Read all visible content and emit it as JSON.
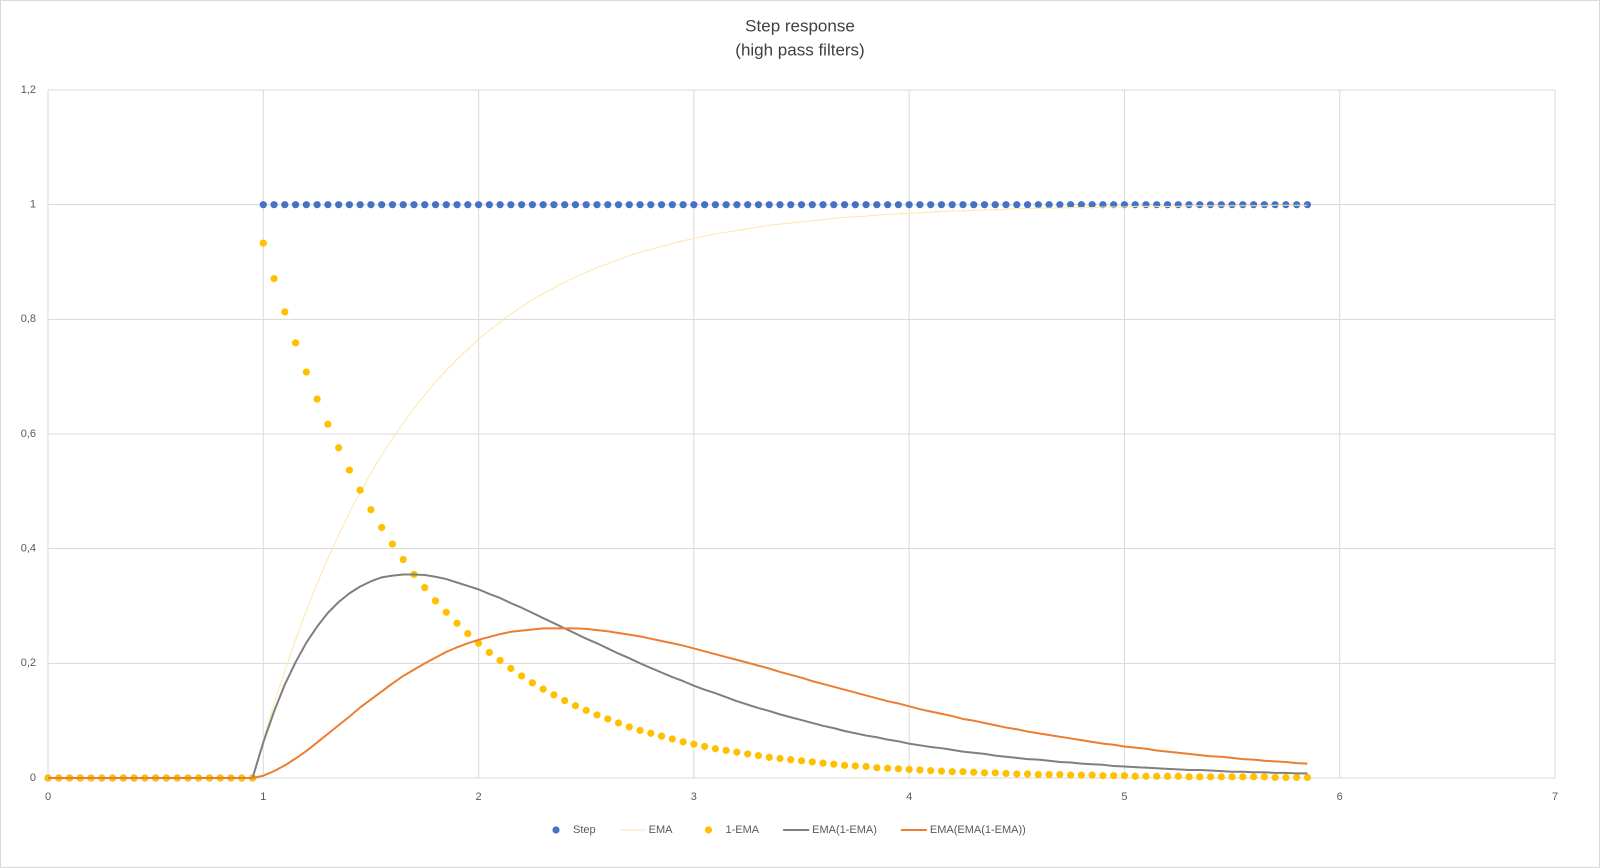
{
  "chart_data": {
    "type": "line",
    "title": "Step response",
    "subtitle": "(high pass filters)",
    "x": [
      0,
      0.05,
      0.1,
      0.15,
      0.2,
      0.25,
      0.3,
      0.35,
      0.4,
      0.45,
      0.5,
      0.55,
      0.6,
      0.65,
      0.7,
      0.75,
      0.8,
      0.85,
      0.9,
      0.95,
      1,
      1.05,
      1.1,
      1.15,
      1.2,
      1.25,
      1.3,
      1.35,
      1.4,
      1.45,
      1.5,
      1.55,
      1.6,
      1.65,
      1.7,
      1.75,
      1.8,
      1.85,
      1.9,
      1.95,
      2,
      2.05,
      2.1,
      2.15,
      2.2,
      2.25,
      2.3,
      2.35,
      2.4,
      2.45,
      2.5,
      2.55,
      2.6,
      2.65,
      2.7,
      2.75,
      2.8,
      2.85,
      2.9,
      2.95,
      3,
      3.05,
      3.1,
      3.15,
      3.2,
      3.25,
      3.3,
      3.35,
      3.4,
      3.45,
      3.5,
      3.55,
      3.6,
      3.65,
      3.7,
      3.75,
      3.8,
      3.85,
      3.9,
      3.95,
      4,
      4.05,
      4.1,
      4.15,
      4.2,
      4.25,
      4.3,
      4.35,
      4.4,
      4.45,
      4.5,
      4.55,
      4.6,
      4.65,
      4.7,
      4.75,
      4.8,
      4.85,
      4.9,
      4.95,
      5,
      5.05,
      5.1,
      5.15,
      5.2,
      5.25,
      5.3,
      5.35,
      5.4,
      5.45,
      5.5,
      5.55,
      5.6,
      5.65,
      5.7,
      5.75,
      5.8,
      5.85
    ],
    "series": [
      {
        "name": "Step",
        "color": "#4472c4",
        "mode": "markers",
        "values": [
          0,
          0,
          0,
          0,
          0,
          0,
          0,
          0,
          0,
          0,
          0,
          0,
          0,
          0,
          0,
          0,
          0,
          0,
          0,
          0,
          1,
          1,
          1,
          1,
          1,
          1,
          1,
          1,
          1,
          1,
          1,
          1,
          1,
          1,
          1,
          1,
          1,
          1,
          1,
          1,
          1,
          1,
          1,
          1,
          1,
          1,
          1,
          1,
          1,
          1,
          1,
          1,
          1,
          1,
          1,
          1,
          1,
          1,
          1,
          1,
          1,
          1,
          1,
          1,
          1,
          1,
          1,
          1,
          1,
          1,
          1,
          1,
          1,
          1,
          1,
          1,
          1,
          1,
          1,
          1,
          1,
          1,
          1,
          1,
          1,
          1,
          1,
          1,
          1,
          1,
          1,
          1,
          1,
          1,
          1,
          1,
          1,
          1,
          1,
          1,
          1,
          1,
          1,
          1,
          1,
          1,
          1,
          1,
          1,
          1,
          1,
          1,
          1,
          1,
          1,
          1,
          1,
          1
        ]
      },
      {
        "name": "EMA",
        "color": "#fde7a8",
        "mode": "line",
        "width": 1,
        "values": [
          0,
          0,
          0,
          0,
          0,
          0,
          0,
          0,
          0,
          0,
          0,
          0,
          0,
          0,
          0,
          0,
          0,
          0,
          0,
          0,
          0.067,
          0.129,
          0.187,
          0.241,
          0.292,
          0.339,
          0.383,
          0.424,
          0.463,
          0.498,
          0.532,
          0.563,
          0.592,
          0.619,
          0.645,
          0.668,
          0.691,
          0.711,
          0.73,
          0.748,
          0.765,
          0.781,
          0.795,
          0.809,
          0.822,
          0.834,
          0.845,
          0.855,
          0.865,
          0.874,
          0.882,
          0.89,
          0.897,
          0.904,
          0.911,
          0.917,
          0.922,
          0.927,
          0.932,
          0.937,
          0.941,
          0.945,
          0.949,
          0.952,
          0.955,
          0.958,
          0.961,
          0.964,
          0.966,
          0.968,
          0.97,
          0.972,
          0.974,
          0.976,
          0.978,
          0.979,
          0.98,
          0.982,
          0.983,
          0.984,
          0.985,
          0.986,
          0.987,
          0.988,
          0.989,
          0.989,
          0.99,
          0.991,
          0.991,
          0.992,
          0.993,
          0.993,
          0.994,
          0.994,
          0.994,
          0.995,
          0.995,
          0.995,
          0.996,
          0.996,
          0.996,
          0.997,
          0.997,
          0.997,
          0.997,
          0.997,
          0.998,
          0.998,
          0.998,
          0.998,
          0.998,
          0.998,
          0.998,
          0.998,
          0.999,
          0.999,
          0.999,
          0.999
        ]
      },
      {
        "name": "1-EMA",
        "color": "#ffc000",
        "mode": "markers",
        "values": [
          0,
          0,
          0,
          0,
          0,
          0,
          0,
          0,
          0,
          0,
          0,
          0,
          0,
          0,
          0,
          0,
          0,
          0,
          0,
          0,
          0.933,
          0.871,
          0.813,
          0.759,
          0.708,
          0.661,
          0.617,
          0.576,
          0.537,
          0.502,
          0.468,
          0.437,
          0.408,
          0.381,
          0.355,
          0.332,
          0.309,
          0.289,
          0.27,
          0.252,
          0.235,
          0.219,
          0.205,
          0.191,
          0.178,
          0.166,
          0.155,
          0.145,
          0.135,
          0.126,
          0.118,
          0.11,
          0.103,
          0.096,
          0.089,
          0.083,
          0.078,
          0.073,
          0.068,
          0.063,
          0.059,
          0.055,
          0.051,
          0.048,
          0.045,
          0.042,
          0.039,
          0.036,
          0.034,
          0.032,
          0.03,
          0.028,
          0.026,
          0.024,
          0.022,
          0.021,
          0.02,
          0.018,
          0.017,
          0.016,
          0.015,
          0.014,
          0.013,
          0.012,
          0.011,
          0.011,
          0.01,
          0.009,
          0.009,
          0.008,
          0.007,
          0.007,
          0.006,
          0.006,
          0.006,
          0.005,
          0.005,
          0.005,
          0.004,
          0.004,
          0.004,
          0.003,
          0.003,
          0.003,
          0.003,
          0.003,
          0.002,
          0.002,
          0.002,
          0.002,
          0.002,
          0.002,
          0.002,
          0.002,
          0.001,
          0.001,
          0.001,
          0.001
        ]
      },
      {
        "name": "EMA(1-EMA)",
        "color": "#7f7f7f",
        "mode": "line",
        "width": 2,
        "values": [
          0,
          0,
          0,
          0,
          0,
          0,
          0,
          0,
          0,
          0,
          0,
          0,
          0,
          0,
          0,
          0,
          0,
          0,
          0,
          0,
          0.062,
          0.116,
          0.163,
          0.202,
          0.236,
          0.264,
          0.288,
          0.307,
          0.322,
          0.334,
          0.343,
          0.35,
          0.353,
          0.355,
          0.355,
          0.354,
          0.351,
          0.347,
          0.341,
          0.335,
          0.329,
          0.321,
          0.314,
          0.305,
          0.297,
          0.288,
          0.279,
          0.27,
          0.261,
          0.252,
          0.243,
          0.235,
          0.226,
          0.217,
          0.209,
          0.2,
          0.192,
          0.184,
          0.176,
          0.169,
          0.161,
          0.154,
          0.148,
          0.141,
          0.134,
          0.128,
          0.122,
          0.117,
          0.111,
          0.106,
          0.101,
          0.096,
          0.091,
          0.087,
          0.082,
          0.078,
          0.074,
          0.071,
          0.067,
          0.064,
          0.06,
          0.057,
          0.054,
          0.052,
          0.049,
          0.046,
          0.044,
          0.042,
          0.039,
          0.037,
          0.035,
          0.033,
          0.032,
          0.03,
          0.028,
          0.027,
          0.025,
          0.024,
          0.023,
          0.021,
          0.02,
          0.019,
          0.018,
          0.017,
          0.016,
          0.015,
          0.014,
          0.014,
          0.013,
          0.012,
          0.011,
          0.011,
          0.01,
          0.01,
          0.009,
          0.009,
          0.008,
          0.008
        ]
      },
      {
        "name": "EMA(EMA(1-EMA))",
        "color": "#ed7d31",
        "mode": "line",
        "width": 2,
        "values": [
          0,
          0,
          0,
          0,
          0,
          0,
          0,
          0,
          0,
          0,
          0,
          0,
          0,
          0,
          0,
          0,
          0,
          0,
          0,
          0,
          0.004,
          0.012,
          0.022,
          0.034,
          0.047,
          0.062,
          0.077,
          0.092,
          0.107,
          0.123,
          0.137,
          0.151,
          0.165,
          0.178,
          0.189,
          0.2,
          0.21,
          0.22,
          0.228,
          0.235,
          0.241,
          0.246,
          0.251,
          0.255,
          0.257,
          0.259,
          0.261,
          0.261,
          0.261,
          0.261,
          0.26,
          0.258,
          0.256,
          0.253,
          0.25,
          0.247,
          0.243,
          0.239,
          0.235,
          0.231,
          0.226,
          0.221,
          0.216,
          0.211,
          0.206,
          0.201,
          0.196,
          0.191,
          0.185,
          0.18,
          0.175,
          0.169,
          0.164,
          0.159,
          0.154,
          0.149,
          0.144,
          0.139,
          0.134,
          0.13,
          0.125,
          0.12,
          0.116,
          0.112,
          0.108,
          0.103,
          0.1,
          0.096,
          0.092,
          0.088,
          0.085,
          0.081,
          0.078,
          0.075,
          0.072,
          0.069,
          0.066,
          0.063,
          0.06,
          0.058,
          0.055,
          0.053,
          0.051,
          0.048,
          0.046,
          0.044,
          0.042,
          0.04,
          0.038,
          0.037,
          0.035,
          0.033,
          0.032,
          0.03,
          0.029,
          0.028,
          0.026,
          0.025
        ]
      }
    ],
    "xlim": [
      0,
      7
    ],
    "xticks": [
      0,
      1,
      2,
      3,
      4,
      5,
      6,
      7
    ],
    "ylim": [
      0,
      1.2
    ],
    "yticks": [
      0,
      {
        "value": 0.2,
        "label": "0,2"
      },
      {
        "value": 0.4,
        "label": "0,4"
      },
      {
        "value": 0.6,
        "label": "0,6"
      },
      {
        "value": 0.8,
        "label": "0,8"
      },
      1,
      {
        "value": 1.2,
        "label": "1,2"
      }
    ],
    "grid": true,
    "legend": "bottom"
  }
}
